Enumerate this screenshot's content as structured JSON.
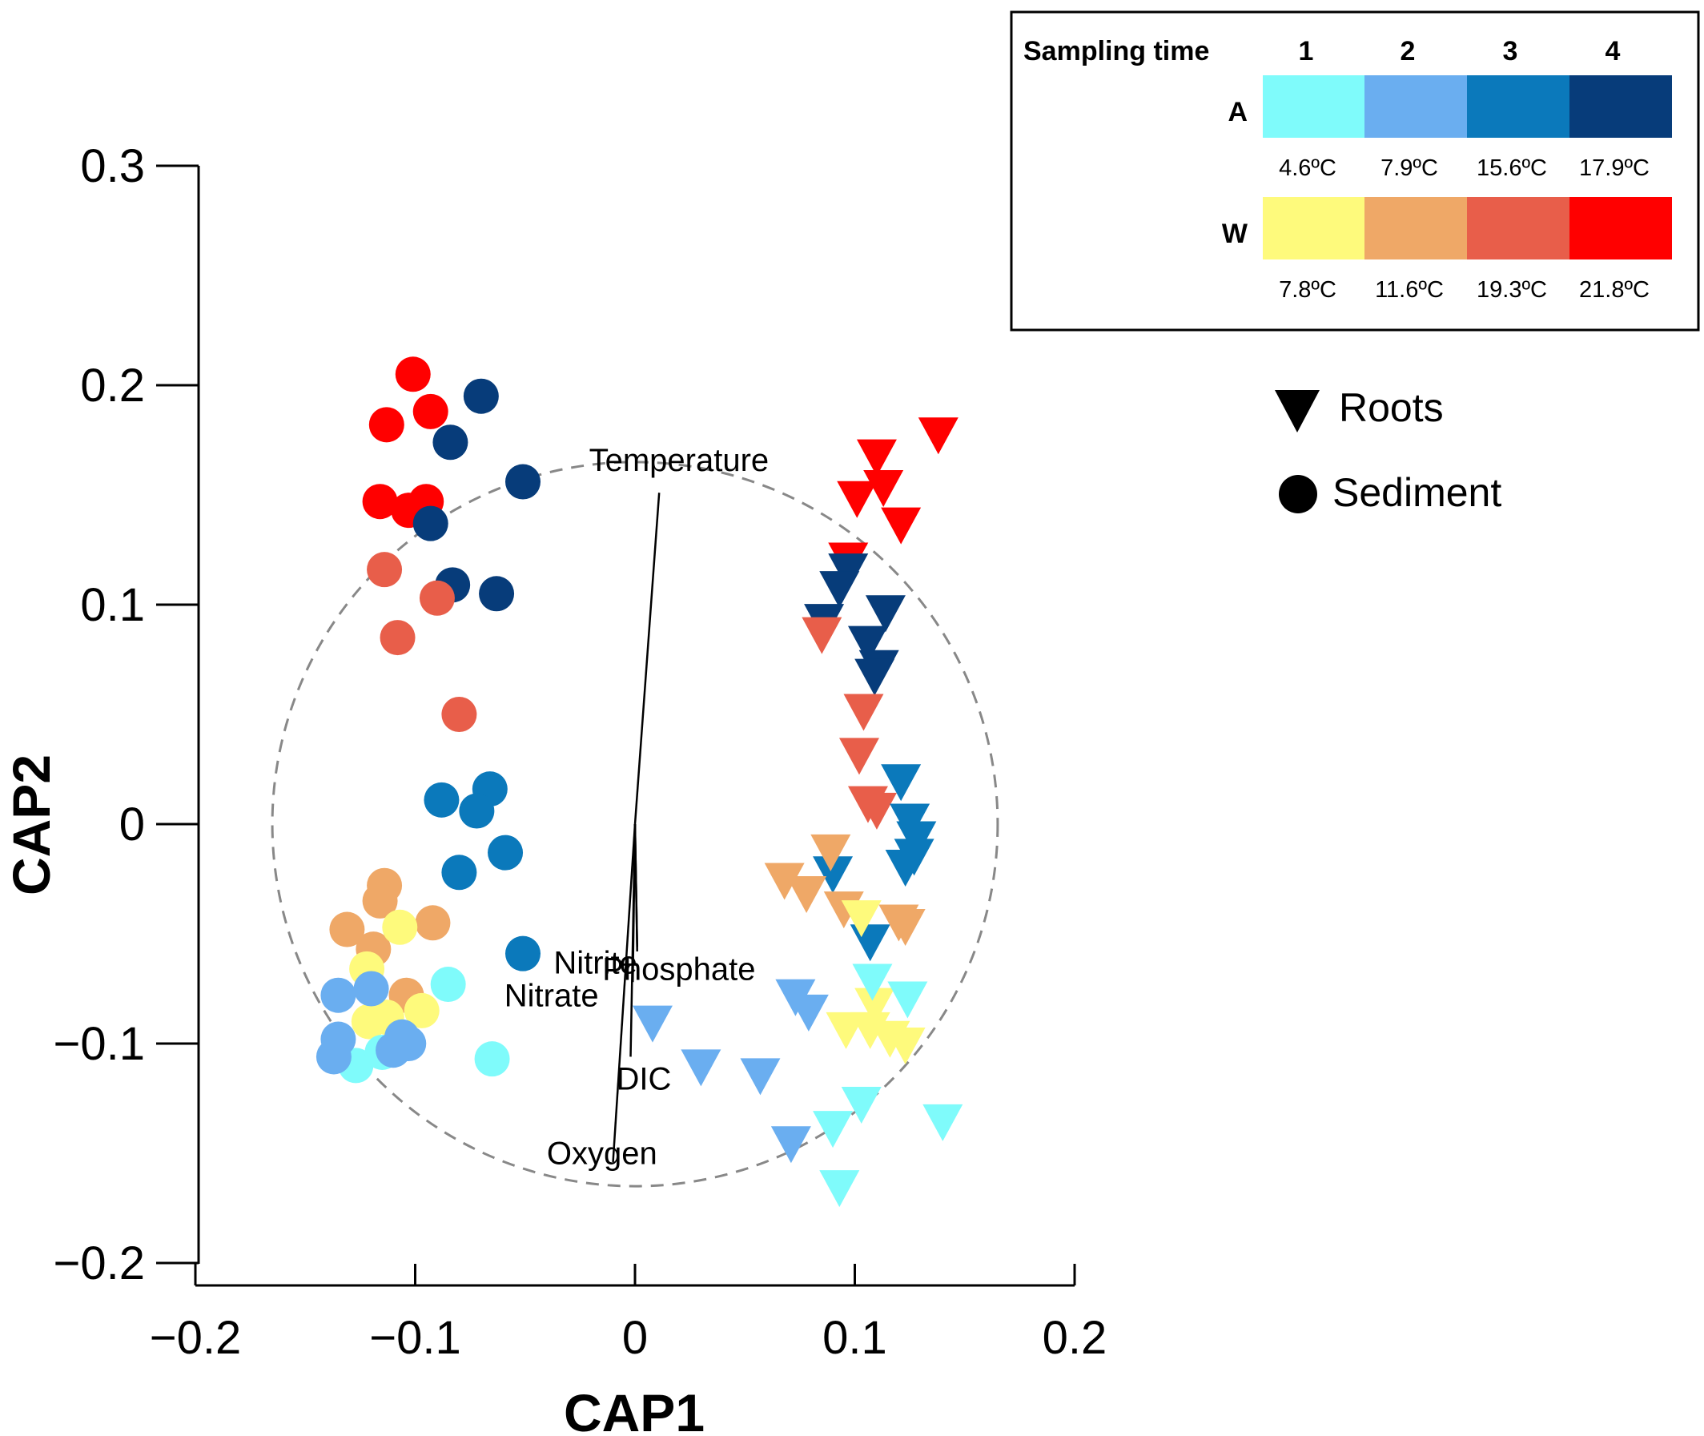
{
  "chart_data": {
    "type": "scatter",
    "xlabel": "CAP1",
    "ylabel": "CAP2",
    "xlim": [
      -0.2,
      0.2
    ],
    "ylim": [
      -0.2,
      0.3
    ],
    "x_ticks": [
      {
        "value": -0.2,
        "label": "−0.2"
      },
      {
        "value": -0.1,
        "label": "−0.1"
      },
      {
        "value": 0,
        "label": "0"
      },
      {
        "value": 0.1,
        "label": "0.1"
      },
      {
        "value": 0.2,
        "label": "0.2"
      }
    ],
    "y_ticks": [
      {
        "value": -0.2,
        "label": "−0.2"
      },
      {
        "value": -0.1,
        "label": "−0.1"
      },
      {
        "value": 0,
        "label": "0"
      },
      {
        "value": 0.1,
        "label": "0.1"
      },
      {
        "value": 0.2,
        "label": "0.2"
      },
      {
        "value": 0.3,
        "label": "0.3"
      }
    ],
    "grid": false,
    "correlation_circle": {
      "center": [
        0,
        0
      ],
      "radius": 0.165,
      "style": "dashed",
      "color": "#888888"
    },
    "vectors": [
      {
        "label": "Temperature",
        "x": 0.011,
        "y": 0.151
      },
      {
        "label": "Nitrite",
        "x": 0.001,
        "y": -0.058
      },
      {
        "label": "Phosphate",
        "x": 0.001,
        "y": -0.056
      },
      {
        "label": "Nitrate",
        "x": -0.001,
        "y": -0.072
      },
      {
        "label": "DIC",
        "x": -0.002,
        "y": -0.106
      },
      {
        "label": "Oxygen",
        "x": -0.01,
        "y": -0.154
      }
    ],
    "legend": {
      "placement": "top-right",
      "title": "Sampling time",
      "times": [
        "1",
        "2",
        "3",
        "4"
      ],
      "groups": [
        {
          "name": "A",
          "colors": [
            "#7ffbfb",
            "#6aaef0",
            "#0b79bb",
            "#073c7a"
          ],
          "temps": [
            "4.6ºC",
            "7.9ºC",
            "15.6ºC",
            "17.9ºC"
          ]
        },
        {
          "name": "W",
          "colors": [
            "#fefa7c",
            "#efa867",
            "#e85e4a",
            "#ff0000"
          ],
          "temps": [
            "7.8ºC",
            "11.6ºC",
            "19.3ºC",
            "21.8ºC"
          ]
        }
      ],
      "shapes": [
        {
          "name": "Roots",
          "marker": "triangle-down"
        },
        {
          "name": "Sediment",
          "marker": "circle"
        }
      ]
    },
    "series": [
      {
        "group": "W",
        "time": 4,
        "marker": "circle",
        "color": "#ff0000",
        "points": [
          [
            -0.101,
            0.205
          ],
          [
            -0.113,
            0.182
          ],
          [
            -0.093,
            0.188
          ],
          [
            -0.116,
            0.147
          ],
          [
            -0.103,
            0.143
          ],
          [
            -0.095,
            0.147
          ]
        ]
      },
      {
        "group": "A",
        "time": 4,
        "marker": "circle",
        "color": "#073c7a",
        "points": [
          [
            -0.07,
            0.195
          ],
          [
            -0.084,
            0.174
          ],
          [
            -0.051,
            0.156
          ],
          [
            -0.093,
            0.137
          ],
          [
            -0.083,
            0.109
          ],
          [
            -0.063,
            0.105
          ]
        ]
      },
      {
        "group": "W",
        "time": 3,
        "marker": "circle",
        "color": "#e85e4a",
        "points": [
          [
            -0.114,
            0.116
          ],
          [
            -0.09,
            0.103
          ],
          [
            -0.108,
            0.085
          ],
          [
            -0.08,
            0.05
          ]
        ]
      },
      {
        "group": "A",
        "time": 3,
        "marker": "circle",
        "color": "#0b79bb",
        "points": [
          [
            -0.088,
            0.011
          ],
          [
            -0.066,
            0.016
          ],
          [
            -0.072,
            0.006
          ],
          [
            -0.059,
            -0.013
          ],
          [
            -0.08,
            -0.022
          ],
          [
            -0.051,
            -0.059
          ]
        ]
      },
      {
        "group": "W",
        "time": 2,
        "marker": "circle",
        "color": "#efa867",
        "points": [
          [
            -0.114,
            -0.028
          ],
          [
            -0.116,
            -0.035
          ],
          [
            -0.131,
            -0.048
          ],
          [
            -0.092,
            -0.045
          ],
          [
            -0.119,
            -0.057
          ],
          [
            -0.104,
            -0.078
          ]
        ]
      },
      {
        "group": "W",
        "time": 1,
        "marker": "circle",
        "color": "#fefa7c",
        "points": [
          [
            -0.107,
            -0.047
          ],
          [
            -0.122,
            -0.066
          ],
          [
            -0.113,
            -0.088
          ],
          [
            -0.097,
            -0.085
          ],
          [
            -0.121,
            -0.09
          ]
        ]
      },
      {
        "group": "A",
        "time": 1,
        "marker": "circle",
        "color": "#7ffbfb",
        "points": [
          [
            -0.085,
            -0.073
          ],
          [
            -0.127,
            -0.11
          ],
          [
            -0.065,
            -0.107
          ],
          [
            -0.115,
            -0.104
          ]
        ]
      },
      {
        "group": "A",
        "time": 2,
        "marker": "circle",
        "color": "#6aaef0",
        "points": [
          [
            -0.135,
            -0.078
          ],
          [
            -0.12,
            -0.075
          ],
          [
            -0.135,
            -0.098
          ],
          [
            -0.137,
            -0.106
          ],
          [
            -0.103,
            -0.1
          ],
          [
            -0.106,
            -0.097
          ],
          [
            -0.11,
            -0.103
          ]
        ]
      },
      {
        "group": "W",
        "time": 4,
        "marker": "triangle-down",
        "color": "#ff0000",
        "points": [
          [
            0.138,
            0.178
          ],
          [
            0.11,
            0.168
          ],
          [
            0.113,
            0.154
          ],
          [
            0.101,
            0.149
          ],
          [
            0.121,
            0.137
          ],
          [
            0.097,
            0.121
          ]
        ]
      },
      {
        "group": "A",
        "time": 4,
        "marker": "triangle-down",
        "color": "#073c7a",
        "points": [
          [
            0.097,
            0.116
          ],
          [
            0.093,
            0.108
          ],
          [
            0.114,
            0.097
          ],
          [
            0.086,
            0.093
          ],
          [
            0.106,
            0.083
          ],
          [
            0.111,
            0.072
          ],
          [
            0.109,
            0.068
          ]
        ]
      },
      {
        "group": "W",
        "time": 3,
        "marker": "triangle-down",
        "color": "#e85e4a",
        "points": [
          [
            0.085,
            0.087
          ],
          [
            0.104,
            0.052
          ],
          [
            0.102,
            0.032
          ],
          [
            0.106,
            0.01
          ],
          [
            0.11,
            0.007
          ]
        ]
      },
      {
        "group": "A",
        "time": 3,
        "marker": "triangle-down",
        "color": "#0b79bb",
        "points": [
          [
            0.121,
            0.02
          ],
          [
            0.125,
            0.002
          ],
          [
            0.128,
            -0.006
          ],
          [
            0.127,
            -0.014
          ],
          [
            0.123,
            -0.019
          ],
          [
            0.09,
            -0.022
          ],
          [
            0.107,
            -0.053
          ]
        ]
      },
      {
        "group": "W",
        "time": 2,
        "marker": "triangle-down",
        "color": "#efa867",
        "points": [
          [
            0.089,
            -0.012
          ],
          [
            0.068,
            -0.025
          ],
          [
            0.078,
            -0.031
          ],
          [
            0.095,
            -0.038
          ],
          [
            0.12,
            -0.044
          ],
          [
            0.123,
            -0.046
          ]
        ]
      },
      {
        "group": "W",
        "time": 1,
        "marker": "triangle-down",
        "color": "#fefa7c",
        "points": [
          [
            0.103,
            -0.042
          ],
          [
            0.109,
            -0.082
          ],
          [
            0.096,
            -0.093
          ],
          [
            0.107,
            -0.093
          ],
          [
            0.116,
            -0.097
          ],
          [
            0.123,
            -0.1
          ]
        ]
      },
      {
        "group": "A",
        "time": 1,
        "marker": "triangle-down",
        "color": "#7ffbfb",
        "points": [
          [
            0.108,
            -0.071
          ],
          [
            0.124,
            -0.079
          ],
          [
            0.103,
            -0.127
          ],
          [
            0.14,
            -0.135
          ],
          [
            0.09,
            -0.138
          ],
          [
            0.093,
            -0.165
          ]
        ]
      },
      {
        "group": "A",
        "time": 2,
        "marker": "triangle-down",
        "color": "#6aaef0",
        "points": [
          [
            0.008,
            -0.09
          ],
          [
            0.03,
            -0.11
          ],
          [
            0.057,
            -0.114
          ],
          [
            0.073,
            -0.078
          ],
          [
            0.079,
            -0.085
          ],
          [
            0.071,
            -0.145
          ]
        ]
      }
    ]
  }
}
